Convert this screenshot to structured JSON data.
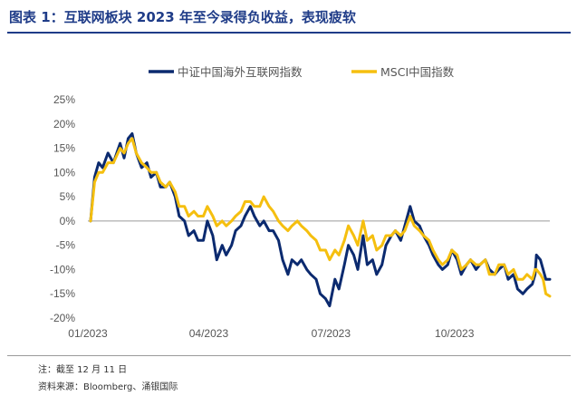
{
  "header": {
    "title": "图表 1：互联网板块 2023 年至今录得负收益，表现疲软"
  },
  "footer": {
    "note": "注：截至 12 月 11 日",
    "source": "资料来源：Bloomberg、涌银国际"
  },
  "chart_data": {
    "type": "line",
    "title": "图表 1：互联网板块 2023 年至今录得负收益，表现疲软",
    "xlabel": "",
    "ylabel": "",
    "x_ticks": [
      "01/2023",
      "04/2023",
      "07/2023",
      "10/2023"
    ],
    "y_ticks": [
      "25%",
      "20%",
      "15%",
      "10%",
      "5%",
      "0%",
      "-5%",
      "-10%",
      "-15%",
      "-20%"
    ],
    "ylim": [
      -20,
      25
    ],
    "xlim": [
      "2023-01-01",
      "2023-12-11"
    ],
    "grid": false,
    "legend_position": "top",
    "colors": {
      "series_1": "#0b2a6f",
      "series_2": "#f5bf0f"
    },
    "series": [
      {
        "name": "中证中国海外互联网指数",
        "points": [
          [
            "2023-01-03",
            0
          ],
          [
            "2023-01-06",
            9
          ],
          [
            "2023-01-09",
            12
          ],
          [
            "2023-01-12",
            11
          ],
          [
            "2023-01-16",
            14
          ],
          [
            "2023-01-20",
            12
          ],
          [
            "2023-01-25",
            16
          ],
          [
            "2023-01-28",
            13
          ],
          [
            "2023-01-31",
            17
          ],
          [
            "2023-02-03",
            18
          ],
          [
            "2023-02-06",
            14
          ],
          [
            "2023-02-10",
            11
          ],
          [
            "2023-02-14",
            12
          ],
          [
            "2023-02-17",
            9
          ],
          [
            "2023-02-21",
            10
          ],
          [
            "2023-02-24",
            7
          ],
          [
            "2023-02-28",
            7
          ],
          [
            "2023-03-03",
            8
          ],
          [
            "2023-03-07",
            5
          ],
          [
            "2023-03-10",
            1
          ],
          [
            "2023-03-14",
            0
          ],
          [
            "2023-03-17",
            -3
          ],
          [
            "2023-03-21",
            -2
          ],
          [
            "2023-03-24",
            -4
          ],
          [
            "2023-03-28",
            -4
          ],
          [
            "2023-03-31",
            0
          ],
          [
            "2023-04-04",
            -3
          ],
          [
            "2023-04-07",
            -8
          ],
          [
            "2023-04-11",
            -5
          ],
          [
            "2023-04-14",
            -7
          ],
          [
            "2023-04-18",
            -5
          ],
          [
            "2023-04-21",
            -2
          ],
          [
            "2023-04-25",
            -1
          ],
          [
            "2023-04-28",
            1
          ],
          [
            "2023-05-02",
            3
          ],
          [
            "2023-05-05",
            1
          ],
          [
            "2023-05-09",
            -1
          ],
          [
            "2023-05-12",
            0
          ],
          [
            "2023-05-16",
            -2
          ],
          [
            "2023-05-19",
            -2
          ],
          [
            "2023-05-23",
            -4
          ],
          [
            "2023-05-26",
            -8
          ],
          [
            "2023-05-30",
            -11
          ],
          [
            "2023-06-02",
            -8
          ],
          [
            "2023-06-06",
            -9
          ],
          [
            "2023-06-09",
            -8
          ],
          [
            "2023-06-13",
            -10
          ],
          [
            "2023-06-16",
            -11
          ],
          [
            "2023-06-20",
            -12
          ],
          [
            "2023-06-23",
            -15
          ],
          [
            "2023-06-27",
            -16
          ],
          [
            "2023-06-30",
            -17.5
          ],
          [
            "2023-07-04",
            -12
          ],
          [
            "2023-07-07",
            -14
          ],
          [
            "2023-07-11",
            -9
          ],
          [
            "2023-07-14",
            -5
          ],
          [
            "2023-07-18",
            -7
          ],
          [
            "2023-07-21",
            -10
          ],
          [
            "2023-07-25",
            -3
          ],
          [
            "2023-07-28",
            -9
          ],
          [
            "2023-08-01",
            -8
          ],
          [
            "2023-08-04",
            -11
          ],
          [
            "2023-08-08",
            -9
          ],
          [
            "2023-08-11",
            -5
          ],
          [
            "2023-08-15",
            -3
          ],
          [
            "2023-08-18",
            -2
          ],
          [
            "2023-08-22",
            -4
          ],
          [
            "2023-08-25",
            -1
          ],
          [
            "2023-08-29",
            3
          ],
          [
            "2023-09-01",
            0
          ],
          [
            "2023-09-05",
            -1
          ],
          [
            "2023-09-08",
            -3
          ],
          [
            "2023-09-12",
            -5
          ],
          [
            "2023-09-15",
            -7
          ],
          [
            "2023-09-19",
            -9
          ],
          [
            "2023-09-22",
            -10
          ],
          [
            "2023-09-26",
            -9
          ],
          [
            "2023-09-29",
            -6
          ],
          [
            "2023-10-03",
            -8
          ],
          [
            "2023-10-06",
            -11
          ],
          [
            "2023-10-10",
            -9
          ],
          [
            "2023-10-13",
            -8
          ],
          [
            "2023-10-17",
            -10
          ],
          [
            "2023-10-20",
            -9
          ],
          [
            "2023-10-24",
            -8
          ],
          [
            "2023-10-27",
            -10
          ],
          [
            "2023-10-31",
            -11
          ],
          [
            "2023-11-03",
            -10
          ],
          [
            "2023-11-07",
            -9
          ],
          [
            "2023-11-10",
            -12
          ],
          [
            "2023-11-14",
            -11
          ],
          [
            "2023-11-17",
            -14
          ],
          [
            "2023-11-21",
            -15
          ],
          [
            "2023-11-24",
            -14
          ],
          [
            "2023-11-28",
            -13
          ],
          [
            "2023-11-30",
            -11
          ],
          [
            "2023-12-01",
            -7
          ],
          [
            "2023-12-04",
            -8
          ],
          [
            "2023-12-06",
            -10
          ],
          [
            "2023-12-08",
            -12
          ],
          [
            "2023-12-11",
            -12
          ]
        ]
      },
      {
        "name": "MSCI中国指数",
        "points": [
          [
            "2023-01-03",
            0
          ],
          [
            "2023-01-06",
            8
          ],
          [
            "2023-01-09",
            10
          ],
          [
            "2023-01-12",
            10
          ],
          [
            "2023-01-16",
            12
          ],
          [
            "2023-01-20",
            12
          ],
          [
            "2023-01-25",
            15
          ],
          [
            "2023-01-28",
            14
          ],
          [
            "2023-01-31",
            16
          ],
          [
            "2023-02-03",
            17
          ],
          [
            "2023-02-06",
            14
          ],
          [
            "2023-02-10",
            12
          ],
          [
            "2023-02-14",
            11
          ],
          [
            "2023-02-17",
            10
          ],
          [
            "2023-02-21",
            10
          ],
          [
            "2023-02-24",
            8
          ],
          [
            "2023-02-28",
            7
          ],
          [
            "2023-03-03",
            8
          ],
          [
            "2023-03-07",
            6
          ],
          [
            "2023-03-10",
            3
          ],
          [
            "2023-03-14",
            3
          ],
          [
            "2023-03-17",
            1
          ],
          [
            "2023-03-21",
            2
          ],
          [
            "2023-03-24",
            1
          ],
          [
            "2023-03-28",
            1
          ],
          [
            "2023-03-31",
            3
          ],
          [
            "2023-04-04",
            1
          ],
          [
            "2023-04-07",
            -1
          ],
          [
            "2023-04-11",
            0
          ],
          [
            "2023-04-14",
            -1
          ],
          [
            "2023-04-18",
            0
          ],
          [
            "2023-04-21",
            1
          ],
          [
            "2023-04-25",
            2
          ],
          [
            "2023-04-28",
            4
          ],
          [
            "2023-05-02",
            4
          ],
          [
            "2023-05-05",
            3
          ],
          [
            "2023-05-09",
            3
          ],
          [
            "2023-05-12",
            5
          ],
          [
            "2023-05-16",
            3
          ],
          [
            "2023-05-19",
            2
          ],
          [
            "2023-05-23",
            0
          ],
          [
            "2023-05-26",
            -1
          ],
          [
            "2023-05-30",
            -2
          ],
          [
            "2023-06-02",
            -1
          ],
          [
            "2023-06-06",
            0
          ],
          [
            "2023-06-09",
            -1
          ],
          [
            "2023-06-13",
            -2
          ],
          [
            "2023-06-16",
            -3
          ],
          [
            "2023-06-20",
            -4
          ],
          [
            "2023-06-23",
            -6
          ],
          [
            "2023-06-27",
            -6
          ],
          [
            "2023-06-30",
            -8
          ],
          [
            "2023-07-04",
            -6
          ],
          [
            "2023-07-07",
            -7
          ],
          [
            "2023-07-11",
            -4
          ],
          [
            "2023-07-14",
            -1
          ],
          [
            "2023-07-18",
            -3
          ],
          [
            "2023-07-21",
            -5
          ],
          [
            "2023-07-25",
            0
          ],
          [
            "2023-07-28",
            -4
          ],
          [
            "2023-08-01",
            -3
          ],
          [
            "2023-08-04",
            -6
          ],
          [
            "2023-08-08",
            -5
          ],
          [
            "2023-08-11",
            -3
          ],
          [
            "2023-08-15",
            -3
          ],
          [
            "2023-08-18",
            -2
          ],
          [
            "2023-08-22",
            -3
          ],
          [
            "2023-08-25",
            -2
          ],
          [
            "2023-08-29",
            1
          ],
          [
            "2023-09-01",
            -1
          ],
          [
            "2023-09-05",
            -2
          ],
          [
            "2023-09-08",
            -3
          ],
          [
            "2023-09-12",
            -4
          ],
          [
            "2023-09-15",
            -6
          ],
          [
            "2023-09-19",
            -8
          ],
          [
            "2023-09-22",
            -9
          ],
          [
            "2023-09-26",
            -8
          ],
          [
            "2023-09-29",
            -6
          ],
          [
            "2023-10-03",
            -7
          ],
          [
            "2023-10-06",
            -10
          ],
          [
            "2023-10-10",
            -9
          ],
          [
            "2023-10-13",
            -8
          ],
          [
            "2023-10-17",
            -9
          ],
          [
            "2023-10-20",
            -9
          ],
          [
            "2023-10-24",
            -8
          ],
          [
            "2023-10-27",
            -11
          ],
          [
            "2023-10-31",
            -11
          ],
          [
            "2023-11-03",
            -9
          ],
          [
            "2023-11-07",
            -9
          ],
          [
            "2023-11-10",
            -11
          ],
          [
            "2023-11-14",
            -10
          ],
          [
            "2023-11-17",
            -12
          ],
          [
            "2023-11-21",
            -12
          ],
          [
            "2023-11-24",
            -11
          ],
          [
            "2023-11-28",
            -12
          ],
          [
            "2023-11-30",
            -10
          ],
          [
            "2023-12-01",
            -10
          ],
          [
            "2023-12-04",
            -11
          ],
          [
            "2023-12-06",
            -12
          ],
          [
            "2023-12-08",
            -15
          ],
          [
            "2023-12-11",
            -15.5
          ]
        ]
      }
    ]
  }
}
